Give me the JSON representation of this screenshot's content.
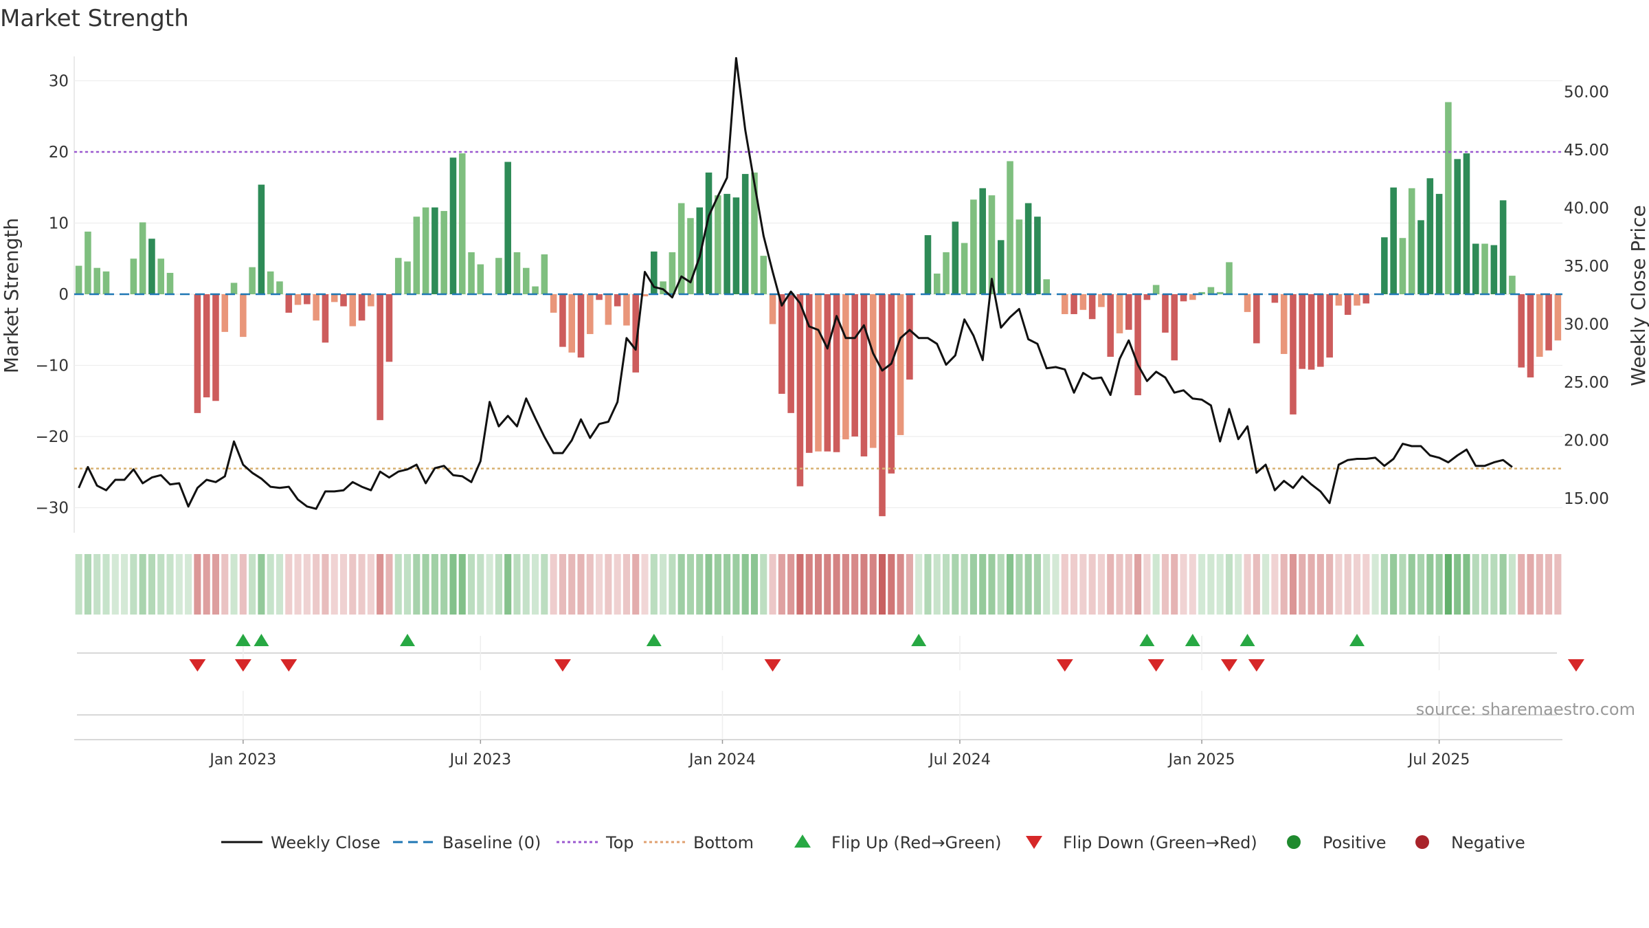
{
  "chart_data": {
    "type": "bar",
    "title": "Market Strength",
    "ylabel_left": "Market Strength",
    "ylabel_right": "Weekly Close Price",
    "ylim_left": [
      -33,
      35
    ],
    "ylim_right": [
      12.3,
      54.5
    ],
    "yticks_left": [
      30,
      20,
      10,
      0,
      -10,
      -20,
      -30
    ],
    "yticks_left_labels": [
      "30",
      "20",
      "10",
      "0",
      "−10",
      "−20",
      "−30"
    ],
    "yticks_right": [
      50,
      45,
      40,
      35,
      30,
      25,
      20,
      15
    ],
    "yticks_right_labels": [
      "50.00",
      "45.00",
      "40.00",
      "35.00",
      "30.00",
      "25.00",
      "20.00",
      "15.00"
    ],
    "x_ticks": [
      {
        "label": "Jan 2023",
        "week": 18
      },
      {
        "label": "Jul 2023",
        "week": 44
      },
      {
        "label": "Jan 2024",
        "week": 70.5
      },
      {
        "label": "Jul 2024",
        "week": 96.5
      },
      {
        "label": "Jan 2025",
        "week": 123
      },
      {
        "label": "Jul 2025",
        "week": 149
      }
    ],
    "top_level": 20,
    "bottom_level": -24.5,
    "baseline": 0,
    "strength": [
      4,
      8.8,
      3.7,
      3.2,
      0,
      0,
      5,
      10.1,
      7.8,
      5,
      3,
      0,
      0,
      -16.7,
      -14.5,
      -15,
      -5.3,
      1.6,
      -6,
      3.8,
      15.4,
      3.2,
      1.8,
      -2.6,
      -1.5,
      -1.4,
      -3.7,
      -6.8,
      -1.1,
      -1.7,
      -4.5,
      -3.7,
      -1.7,
      -17.7,
      -9.5,
      5.1,
      4.6,
      10.9,
      12.2,
      12.2,
      11.7,
      19.2,
      19.8,
      5.9,
      4.2,
      0,
      5.1,
      18.6,
      5.9,
      3.7,
      1.1,
      5.6,
      -2.6,
      -7.4,
      -8.2,
      -8.9,
      -5.6,
      -0.8,
      -4.3,
      -1.7,
      -4.4,
      -11,
      -0.3,
      6,
      1.8,
      5.9,
      12.8,
      10.7,
      12.2,
      17.1,
      13.9,
      14.1,
      13.6,
      16.9,
      17.1,
      5.4,
      -4.2,
      -14,
      -16.7,
      -27,
      -22.3,
      -22.1,
      -22.1,
      -22.2,
      -20.4,
      -20,
      -22.8,
      -21.6,
      -31.2,
      -25.2,
      -19.8,
      -12,
      0,
      8.3,
      2.9,
      5.9,
      10.2,
      7.2,
      13.3,
      14.9,
      13.9,
      7.6,
      18.7,
      10.5,
      12.8,
      10.9,
      2.1,
      0,
      -2.8,
      -2.8,
      -2.2,
      -3.5,
      -1.8,
      -8.8,
      -5.5,
      -5,
      -14.2,
      -0.8,
      1.3,
      -5.4,
      -9.3,
      -1,
      -0.8,
      0.3,
      1,
      0.3,
      4.5,
      0,
      -2.5,
      -6.9,
      0,
      -1.2,
      -8.4,
      -16.9,
      -10.5,
      -10.6,
      -10.2,
      -8.9,
      -1.6,
      -2.9,
      -1.6,
      -1.3,
      0,
      8,
      15,
      7.9,
      14.9,
      10.4,
      16.3,
      14.1,
      27,
      19,
      19.8,
      7.1,
      7.1,
      6.9,
      13.2,
      2.6,
      -10.3,
      -11.7,
      -8.8,
      -7.9,
      -6.5
    ],
    "weekly_close": [
      15.9,
      17.7,
      16.1,
      15.7,
      16.6,
      16.6,
      17.5,
      16.3,
      16.8,
      17,
      16.2,
      16.3,
      14.3,
      15.9,
      16.6,
      16.4,
      16.9,
      19.9,
      17.9,
      17.2,
      16.7,
      16,
      15.9,
      16,
      14.9,
      14.3,
      14.1,
      15.6,
      15.6,
      15.7,
      16.4,
      16,
      15.7,
      17.3,
      16.8,
      17.3,
      17.5,
      17.9,
      16.3,
      17.6,
      17.8,
      17,
      16.9,
      16.4,
      18.2,
      23.3,
      21.2,
      22.1,
      21.2,
      23.6,
      21.9,
      20.3,
      18.9,
      18.9,
      20,
      21.8,
      20.2,
      21.4,
      21.6,
      23.3,
      28.8,
      27.8,
      34.5,
      33.2,
      33,
      32.3,
      34.1,
      33.6,
      35.8,
      39.3,
      41,
      42.6,
      52.9,
      46.7,
      42.1,
      37.6,
      34.5,
      31.6,
      32.8,
      31.8,
      29.8,
      29.5,
      27.9,
      30.7,
      28.8,
      28.8,
      29.9,
      27.5,
      26,
      26.6,
      28.8,
      29.5,
      28.8,
      28.8,
      28.3,
      26.5,
      27.3,
      30.4,
      29,
      26.9,
      33.9,
      29.7,
      30.6,
      31.3,
      28.7,
      28.3,
      26.2,
      26.3,
      26.1,
      24.1,
      25.8,
      25.3,
      25.4,
      23.9,
      27,
      28.6,
      26.5,
      25.1,
      25.9,
      25.4,
      24.1,
      24.3,
      23.6,
      23.5,
      23,
      19.9,
      22.7,
      20.1,
      21.2,
      17.2,
      17.9,
      15.7,
      16.5,
      15.9,
      16.9,
      16.2,
      15.6,
      14.6,
      17.9,
      18.3,
      18.4,
      18.4,
      18.5,
      17.8,
      18.4,
      19.7,
      19.5,
      19.5,
      18.7,
      18.5,
      18.1,
      18.7,
      19.2,
      17.8,
      17.8,
      18.1,
      18.3,
      17.7
    ],
    "flip_up_weeks": [
      18,
      20,
      36,
      63,
      92,
      117,
      122,
      128,
      140
    ],
    "flip_down_weeks": [
      13,
      18,
      23,
      53,
      76,
      108,
      118,
      126,
      129,
      164
    ],
    "legend": [
      {
        "label": "Weekly Close",
        "kind": "line",
        "color": "#111111"
      },
      {
        "label": "Baseline (0)",
        "kind": "dash",
        "color": "#1f77b4"
      },
      {
        "label": "Top",
        "kind": "dot",
        "color": "#9b59d0"
      },
      {
        "label": "Bottom",
        "kind": "dot",
        "color": "#e0a070"
      },
      {
        "label": "Flip Up (Red→Green)",
        "kind": "triangle-up",
        "color": "#27a843"
      },
      {
        "label": "Flip Down (Green→Red)",
        "kind": "triangle-down",
        "color": "#d62728"
      },
      {
        "label": "Positive",
        "kind": "circle",
        "color": "#1f8a2e"
      },
      {
        "label": "Negative",
        "kind": "circle",
        "color": "#a8232a"
      }
    ]
  },
  "source": "source: sharemaestro.com",
  "colors": {
    "pos_dark": "#2e8b57",
    "pos_light": "#7fbf7f",
    "neg_dark": "#cd5c5c",
    "neg_light": "#e9967a",
    "top_line": "#9b59d0",
    "bottom_line": "#d8b070",
    "baseline": "#1f77b4",
    "close_line": "#111111"
  }
}
